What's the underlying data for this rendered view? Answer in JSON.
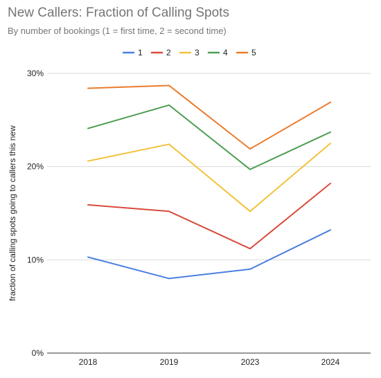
{
  "chart_data": {
    "type": "line",
    "title": "New Callers: Fraction of Calling Spots",
    "subtitle": "By number of bookings (1 = first time, 2 = second time)",
    "xlabel": "",
    "ylabel": "fraction of calling spots going to callers this new",
    "categories": [
      "2018",
      "2019",
      "2023",
      "2024"
    ],
    "ylim": [
      0,
      30
    ],
    "yticks": [
      "0%",
      "10%",
      "20%",
      "30%"
    ],
    "grid": true,
    "legend_position": "top",
    "series": [
      {
        "name": "1",
        "color": "#4a7fe0",
        "values": [
          10.3,
          8.0,
          9.0,
          13.2
        ]
      },
      {
        "name": "2",
        "color": "#d84b3c",
        "values": [
          15.9,
          15.2,
          11.2,
          18.2
        ]
      },
      {
        "name": "3",
        "color": "#f2c23a",
        "values": [
          20.6,
          22.4,
          15.2,
          22.5
        ]
      },
      {
        "name": "4",
        "color": "#4e9e52",
        "values": [
          24.1,
          26.6,
          19.7,
          23.7
        ]
      },
      {
        "name": "5",
        "color": "#ec7a2c",
        "values": [
          28.4,
          28.7,
          21.9,
          26.9
        ]
      }
    ]
  }
}
